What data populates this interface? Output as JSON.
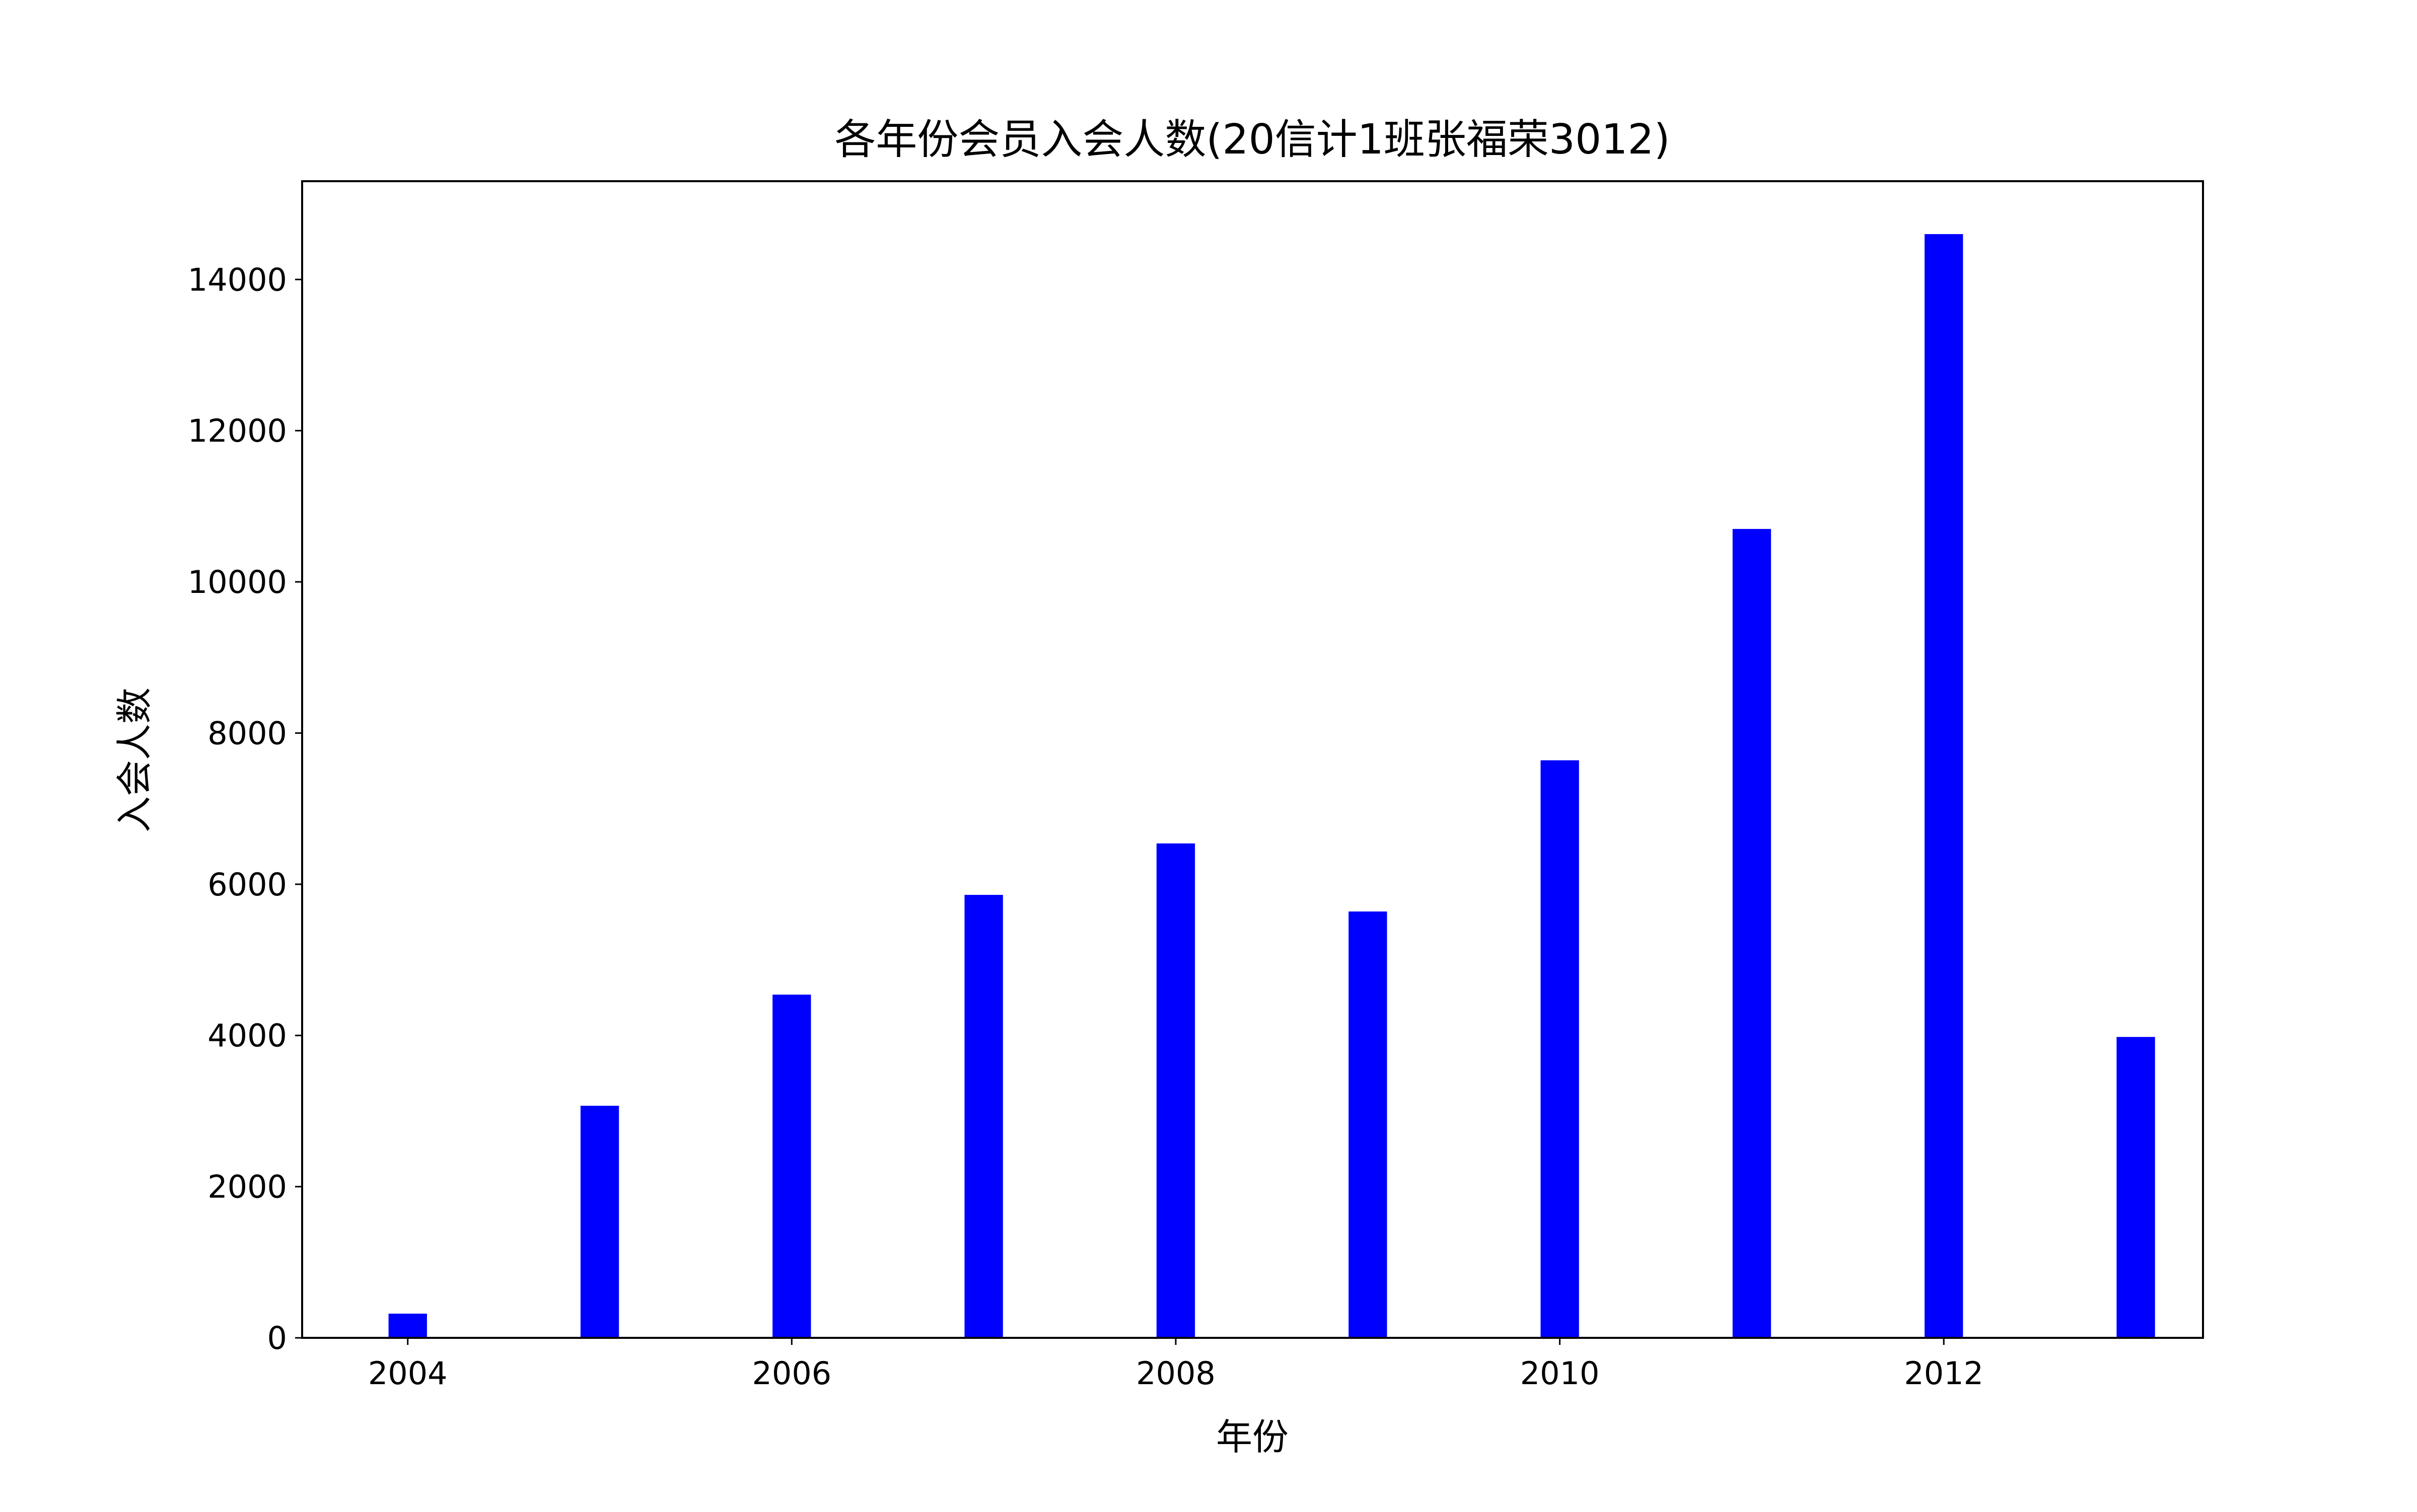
{
  "chart_data": {
    "type": "bar",
    "title": "各年份会员入会人数(20信计1班张福荣3012)",
    "xlabel": "年份",
    "ylabel": "入会人数",
    "x": [
      2004,
      2005,
      2006,
      2007,
      2008,
      2009,
      2010,
      2011,
      2012,
      2013
    ],
    "values": [
      320,
      3070,
      4540,
      5860,
      6540,
      5640,
      7640,
      10700,
      14600,
      3980
    ],
    "xlim": [
      2003.45,
      2013.35
    ],
    "ylim": [
      0,
      15300
    ],
    "xticks": [
      2004,
      2006,
      2008,
      2010,
      2012
    ],
    "yticks": [
      0,
      2000,
      4000,
      6000,
      8000,
      10000,
      12000,
      14000
    ],
    "bar_color": "#0000ff",
    "grid": false,
    "legend": "none"
  }
}
